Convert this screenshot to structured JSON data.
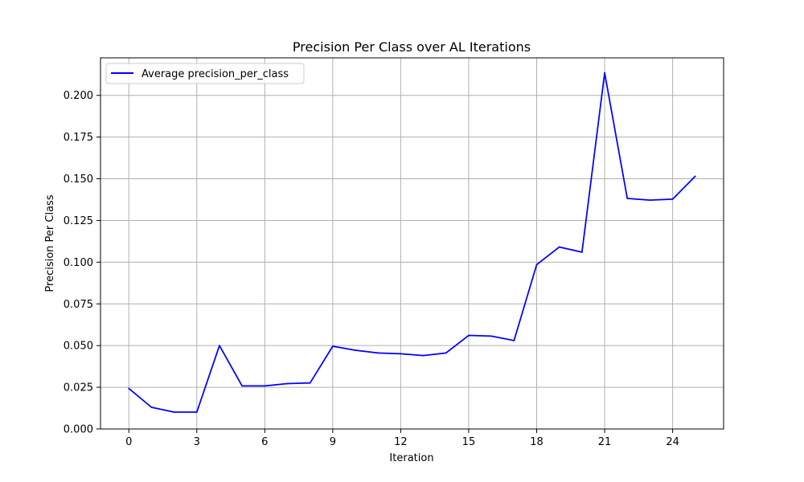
{
  "chart_data": {
    "type": "line",
    "title": "Precision Per Class over AL Iterations",
    "xlabel": "Iteration",
    "ylabel": "Precision Per Class",
    "xlim": [
      -1.25,
      26.25
    ],
    "ylim": [
      0,
      0.2225
    ],
    "xticks": [
      0,
      3,
      6,
      9,
      12,
      15,
      18,
      21,
      24
    ],
    "yticks": [
      0.0,
      0.025,
      0.05,
      0.075,
      0.1,
      0.125,
      0.15,
      0.175,
      0.2
    ],
    "ytick_labels": [
      "0.000",
      "0.025",
      "0.050",
      "0.075",
      "0.100",
      "0.125",
      "0.150",
      "0.175",
      "0.200"
    ],
    "grid": true,
    "legend_position": "top-left",
    "series": [
      {
        "name": "Average precision_per_class",
        "color": "#0000ff",
        "x": [
          0,
          1,
          2,
          3,
          4,
          5,
          6,
          7,
          8,
          9,
          10,
          11,
          12,
          13,
          14,
          15,
          16,
          17,
          18,
          19,
          20,
          21,
          22,
          23,
          24,
          25
        ],
        "y": [
          0.0243,
          0.013,
          0.0101,
          0.0101,
          0.05,
          0.0258,
          0.0258,
          0.0272,
          0.0276,
          0.0496,
          0.0472,
          0.0456,
          0.0451,
          0.044,
          0.0456,
          0.0561,
          0.0557,
          0.053,
          0.0985,
          0.1091,
          0.106,
          0.2135,
          0.1382,
          0.1372,
          0.1378,
          0.1515
        ]
      }
    ]
  }
}
